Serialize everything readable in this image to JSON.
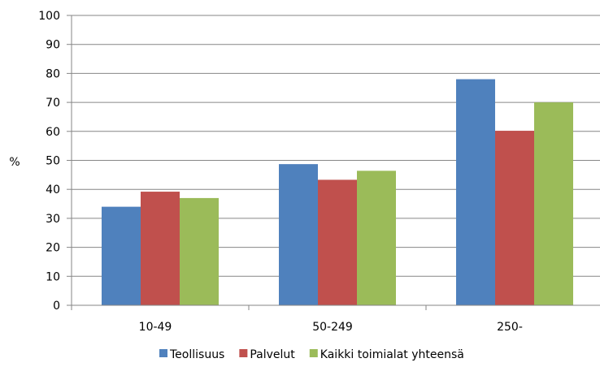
{
  "chart_data": {
    "type": "bar",
    "categories": [
      "10-49",
      "50-249",
      "250-"
    ],
    "series": [
      {
        "name": "Teollisuus",
        "values": [
          34,
          48.7,
          78
        ],
        "color": "#4f81bd"
      },
      {
        "name": "Palvelut",
        "values": [
          39.2,
          43.3,
          60.2
        ],
        "color": "#c0504d"
      },
      {
        "name": "Kaikki toimialat yhteensä",
        "values": [
          37,
          46.4,
          70
        ],
        "color": "#9bbb59"
      }
    ],
    "ylabel": "%",
    "ylim": [
      0,
      100
    ],
    "yticks": [
      "0",
      "10",
      "20",
      "30",
      "40",
      "50",
      "60",
      "70",
      "80",
      "90",
      "100"
    ],
    "grid": true,
    "legend": "bottom"
  }
}
